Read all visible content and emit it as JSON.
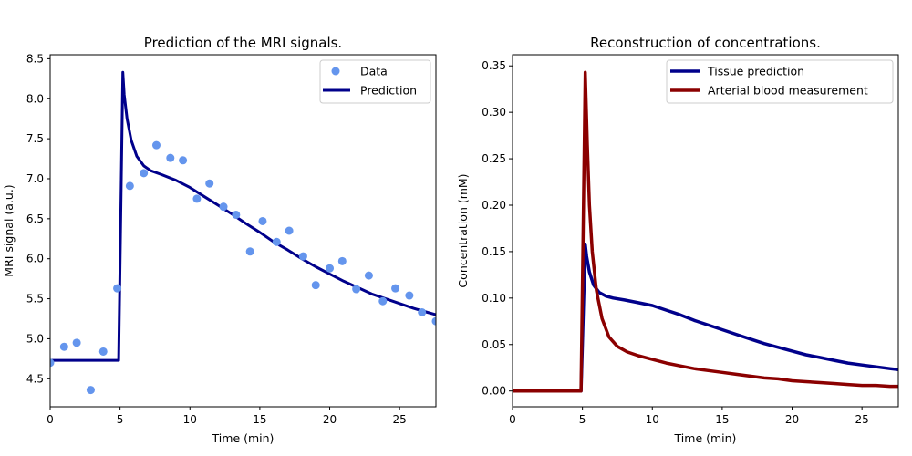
{
  "chart_data": [
    {
      "type": "line",
      "title": "Prediction of the MRI signals.",
      "xlabel": "Time (min)",
      "ylabel": "MRI signal (a.u.)",
      "xlim": [
        0,
        27.6
      ],
      "ylim": [
        4.15,
        8.55
      ],
      "xticks": [
        0,
        5,
        10,
        15,
        20,
        25
      ],
      "yticks": [
        4.5,
        5.0,
        5.5,
        6.0,
        6.5,
        7.0,
        7.5,
        8.0,
        8.5
      ],
      "xtick_labels": [
        "0",
        "5",
        "10",
        "15",
        "20",
        "25"
      ],
      "ytick_labels": [
        "4.5",
        "5.0",
        "5.5",
        "6.0",
        "6.5",
        "7.0",
        "7.5",
        "8.0",
        "8.5"
      ],
      "legend_position": "top-right",
      "series": [
        {
          "name": "Data",
          "kind": "scatter",
          "color": "#6495ED",
          "x": [
            0.0,
            1.0,
            1.9,
            2.9,
            3.8,
            4.8,
            5.7,
            6.7,
            7.6,
            8.6,
            9.5,
            10.5,
            11.4,
            12.4,
            13.3,
            14.3,
            15.2,
            16.2,
            17.1,
            18.1,
            19.0,
            20.0,
            20.9,
            21.9,
            22.8,
            23.8,
            24.7,
            25.7,
            26.6,
            27.6
          ],
          "y": [
            4.7,
            4.9,
            4.95,
            4.36,
            4.84,
            5.63,
            6.91,
            7.07,
            7.42,
            7.26,
            7.23,
            6.75,
            6.94,
            6.65,
            6.55,
            6.09,
            6.47,
            6.21,
            6.35,
            6.03,
            5.67,
            5.88,
            5.97,
            5.62,
            5.79,
            5.47,
            5.63,
            5.54,
            5.33,
            5.22
          ]
        },
        {
          "name": "Prediction",
          "kind": "line",
          "color": "#00008B",
          "x": [
            0,
            4.9,
            5.2,
            5.3,
            5.5,
            5.8,
            6.2,
            6.7,
            7.2,
            8.0,
            9.0,
            10.0,
            11.0,
            12.0,
            13.0,
            14.0,
            15.0,
            16.0,
            17.0,
            18.0,
            19.0,
            20.0,
            21.0,
            22.0,
            23.0,
            24.0,
            25.0,
            26.0,
            27.0,
            27.6
          ],
          "y": [
            4.73,
            4.73,
            8.33,
            8.05,
            7.75,
            7.48,
            7.28,
            7.16,
            7.1,
            7.05,
            6.98,
            6.89,
            6.78,
            6.67,
            6.56,
            6.44,
            6.33,
            6.21,
            6.11,
            6.0,
            5.9,
            5.81,
            5.72,
            5.64,
            5.56,
            5.5,
            5.44,
            5.38,
            5.33,
            5.3
          ]
        }
      ]
    },
    {
      "type": "line",
      "title": "Reconstruction of concentrations.",
      "xlabel": "Time (min)",
      "ylabel": "Concentration (mM)",
      "xlim": [
        0,
        27.6
      ],
      "ylim": [
        -0.017,
        0.362
      ],
      "xticks": [
        0,
        5,
        10,
        15,
        20,
        25
      ],
      "yticks": [
        0.0,
        0.05,
        0.1,
        0.15,
        0.2,
        0.25,
        0.3,
        0.35
      ],
      "xtick_labels": [
        "0",
        "5",
        "10",
        "15",
        "20",
        "25"
      ],
      "ytick_labels": [
        "0.00",
        "0.05",
        "0.10",
        "0.15",
        "0.20",
        "0.25",
        "0.30",
        "0.35"
      ],
      "legend_position": "top-right",
      "series": [
        {
          "name": "Tissue prediction",
          "kind": "line",
          "color": "#00008B",
          "x": [
            0,
            4.9,
            5.2,
            5.3,
            5.5,
            5.8,
            6.2,
            6.7,
            7.2,
            8.0,
            9.0,
            10.0,
            11.0,
            12.0,
            13.0,
            14.0,
            15.0,
            16.0,
            17.0,
            18.0,
            19.0,
            20.0,
            21.0,
            22.0,
            23.0,
            24.0,
            25.0,
            26.0,
            27.0,
            27.6
          ],
          "y": [
            0.0,
            0.0,
            0.158,
            0.145,
            0.128,
            0.114,
            0.106,
            0.102,
            0.1,
            0.098,
            0.095,
            0.092,
            0.087,
            0.082,
            0.076,
            0.071,
            0.066,
            0.061,
            0.056,
            0.051,
            0.047,
            0.043,
            0.039,
            0.036,
            0.033,
            0.03,
            0.028,
            0.026,
            0.024,
            0.023
          ]
        },
        {
          "name": "Arterial blood measurement",
          "kind": "line",
          "color": "#8B0000",
          "x": [
            0,
            4.9,
            5.2,
            5.35,
            5.5,
            5.7,
            6.0,
            6.4,
            6.9,
            7.5,
            8.2,
            9.0,
            10.0,
            11.0,
            12.0,
            13.0,
            14.0,
            15.0,
            16.0,
            17.0,
            18.0,
            19.0,
            20.0,
            21.0,
            22.0,
            23.0,
            24.0,
            25.0,
            26.0,
            27.0,
            27.6
          ],
          "y": [
            0.0,
            0.0,
            0.343,
            0.265,
            0.2,
            0.15,
            0.108,
            0.078,
            0.058,
            0.048,
            0.042,
            0.038,
            0.034,
            0.03,
            0.027,
            0.024,
            0.022,
            0.02,
            0.018,
            0.016,
            0.014,
            0.013,
            0.011,
            0.01,
            0.009,
            0.008,
            0.007,
            0.006,
            0.006,
            0.005,
            0.005
          ]
        }
      ]
    }
  ]
}
